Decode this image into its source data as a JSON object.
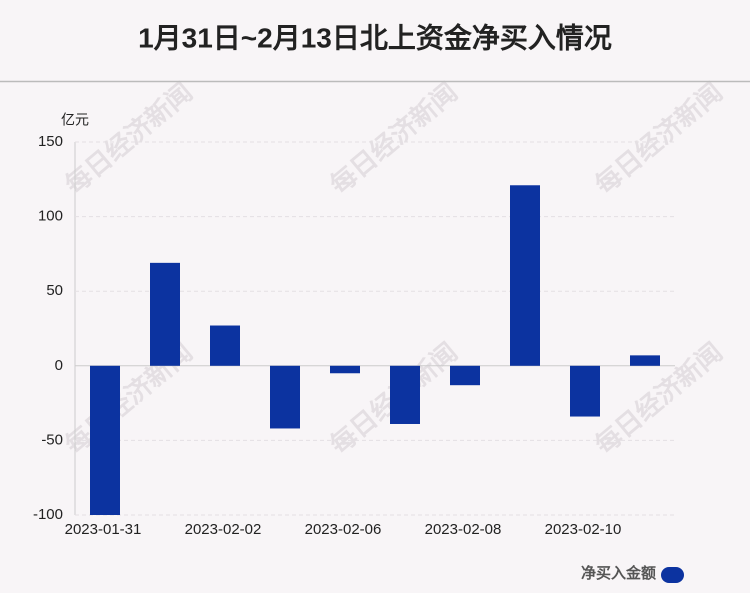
{
  "chart_data": {
    "type": "bar",
    "title": "1月31日~2月13日北上资金净买入情况",
    "y_unit": "亿元",
    "watermark": "每日经济新闻",
    "categories": [
      "2023-01-31",
      null,
      "2023-02-02",
      null,
      "2023-02-06",
      null,
      "2023-02-08",
      null,
      "2023-02-10",
      null
    ],
    "series": [
      {
        "name": "净买入金额",
        "color": "#0c33a0",
        "values": [
          -100,
          69,
          27,
          -42,
          -5,
          -39,
          -13,
          121,
          -34,
          7
        ]
      }
    ],
    "ylim": [
      -100,
      150
    ],
    "yticks": [
      -100,
      -50,
      0,
      50,
      100,
      150
    ],
    "grid": true
  }
}
